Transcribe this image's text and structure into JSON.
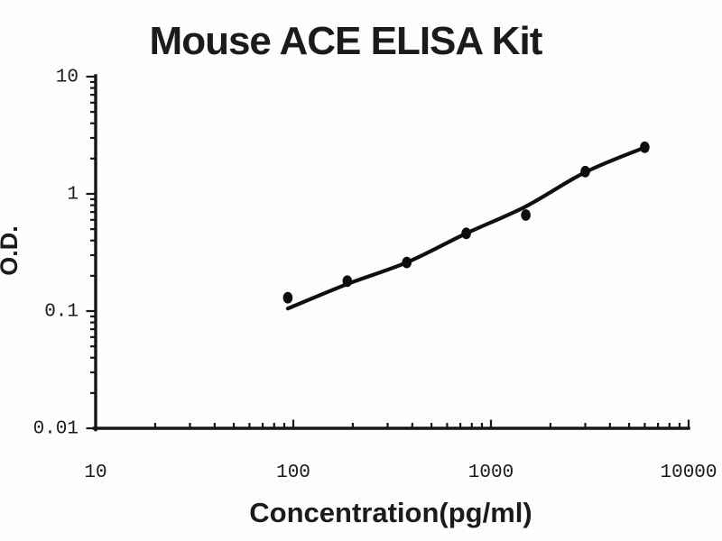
{
  "figure": {
    "background_color": "#fdfdfd",
    "ink_color": "#161616"
  },
  "chart_data": {
    "type": "scatter",
    "title": "Mouse ACE ELISA Kit",
    "xlabel": "Concentration(pg/ml)",
    "ylabel": "O.D.",
    "x_scale": "log",
    "y_scale": "log",
    "xlim": [
      10,
      10000
    ],
    "ylim": [
      0.01,
      10
    ],
    "x_major_ticks": [
      10,
      100,
      1000,
      10000
    ],
    "x_tick_labels": [
      "10",
      "100",
      "1000",
      "10000"
    ],
    "y_major_ticks": [
      0.01,
      0.1,
      1,
      10
    ],
    "y_tick_labels": [
      "0.01",
      "0.1",
      "1",
      "10"
    ],
    "minor_ticks": true,
    "grid": false,
    "legend": null,
    "marker_color": "#0d0d0d",
    "line_color": "#101010",
    "series": [
      {
        "name": "standard-dilution-points",
        "type": "scatter",
        "marker": "filled-circle",
        "points": [
          [
            93.75,
            0.13
          ],
          [
            187.5,
            0.18
          ],
          [
            375,
            0.26
          ],
          [
            750,
            0.46
          ],
          [
            1500,
            0.66
          ],
          [
            3000,
            1.55
          ],
          [
            6000,
            2.5
          ]
        ]
      },
      {
        "name": "fitted-curve",
        "type": "line",
        "points": [
          [
            93.75,
            0.105
          ],
          [
            187.5,
            0.17
          ],
          [
            375,
            0.26
          ],
          [
            750,
            0.46
          ],
          [
            1500,
            0.78
          ],
          [
            3000,
            1.53
          ],
          [
            6000,
            2.49
          ]
        ]
      }
    ]
  }
}
